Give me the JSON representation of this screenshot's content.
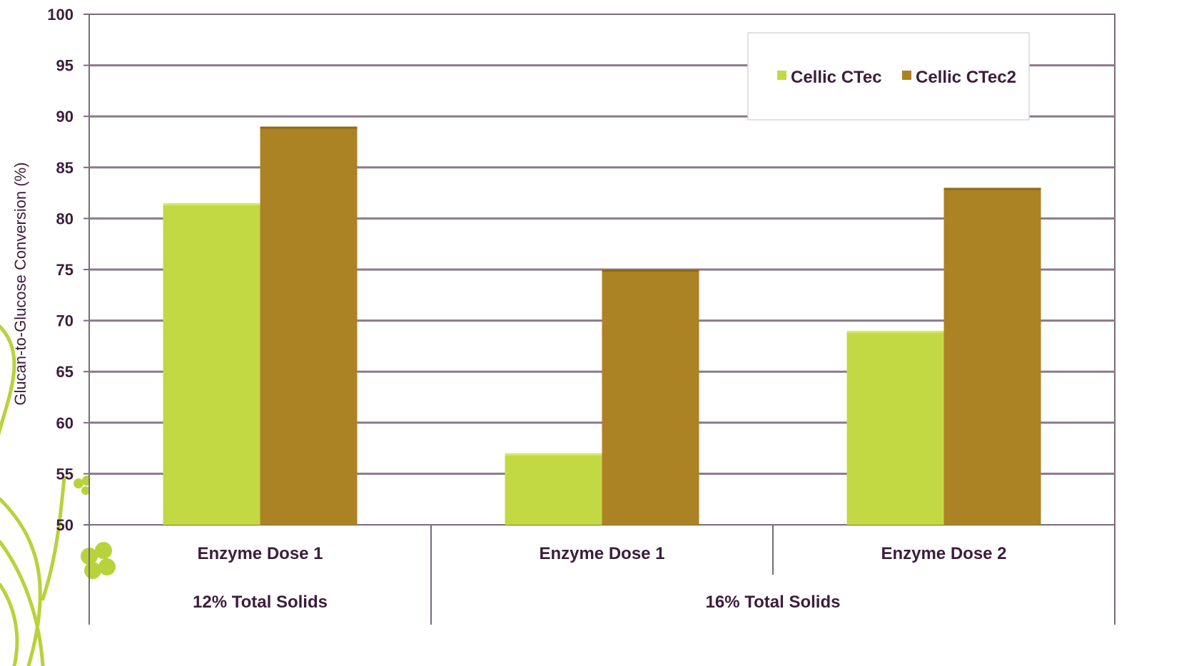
{
  "chart_data": {
    "type": "bar",
    "ylabel": "Glucan-to-Glucose Conversion (%)",
    "ylim": [
      50,
      100
    ],
    "yticks": [
      50,
      55,
      60,
      65,
      70,
      75,
      80,
      85,
      90,
      95,
      100
    ],
    "grid": true,
    "legend_position": "top-right",
    "categories": [
      "Enzyme Dose 1",
      "Enzyme Dose 1",
      "Enzyme Dose 2"
    ],
    "groups": [
      {
        "label": "12% Total Solids",
        "span": 1
      },
      {
        "label": "16% Total Solids",
        "span": 2
      }
    ],
    "series": [
      {
        "name": "Cellic CTec",
        "values": [
          81.5,
          57,
          69
        ],
        "color": "#c3d944"
      },
      {
        "name": "Cellic CTec2",
        "values": [
          89,
          75,
          83
        ],
        "color": "#ab8224"
      }
    ]
  },
  "colors": {
    "axis": "#7a6a7a",
    "gridline": "#8b7a8b",
    "text": "#3b1e3b",
    "decoration": "#b8d23c"
  }
}
